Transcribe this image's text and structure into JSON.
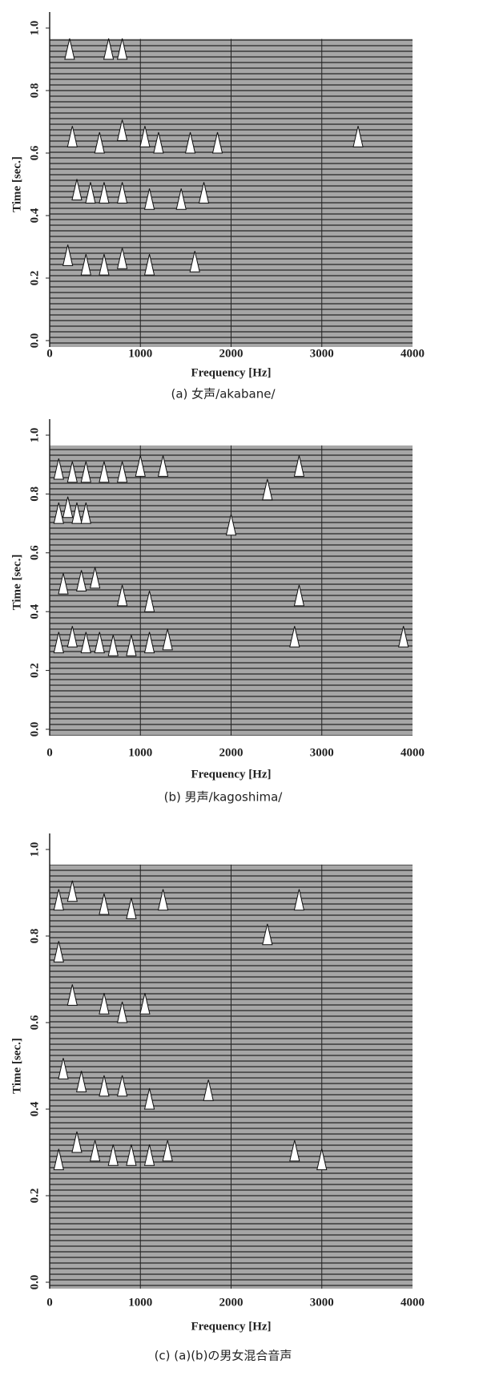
{
  "chart_data": [
    {
      "type": "waterfall",
      "x_label": "Frequency [Hz]",
      "y_label": "Time [sec.]",
      "caption": "(a) 女声/akabane/",
      "xlim": [
        0,
        4000
      ],
      "xticks": [
        0,
        1000,
        2000,
        3000,
        4000
      ],
      "ylim": [
        0,
        1
      ],
      "yticks": [
        {
          "value": 0,
          "label": "0.0"
        },
        0.2,
        0.4,
        0.6,
        0.8,
        {
          "value": 1,
          "label": "1.0"
        }
      ],
      "peaks": {
        "x": [
          220,
          650,
          800,
          250,
          550,
          800,
          1050,
          1200,
          1550,
          1850,
          300,
          450,
          600,
          800,
          1100,
          1450,
          1700,
          200,
          400,
          600,
          800,
          1100,
          1600,
          3400
        ],
        "y": [
          0.9,
          0.9,
          0.9,
          0.62,
          0.6,
          0.64,
          0.62,
          0.6,
          0.6,
          0.6,
          0.45,
          0.44,
          0.44,
          0.44,
          0.42,
          0.42,
          0.44,
          0.24,
          0.21,
          0.21,
          0.23,
          0.21,
          0.22,
          0.62
        ]
      }
    },
    {
      "type": "waterfall",
      "x_label": "Frequency [Hz]",
      "y_label": "Time [sec.]",
      "caption": "(b) 男声/kagoshima/",
      "xlim": [
        0,
        4000
      ],
      "xticks": [
        0,
        1000,
        2000,
        3000,
        4000
      ],
      "ylim": [
        0,
        1
      ],
      "yticks": [
        {
          "value": 0,
          "label": "0.0"
        },
        0.2,
        0.4,
        0.6,
        0.8,
        {
          "value": 1,
          "label": "1.0"
        }
      ],
      "peaks": {
        "x": [
          100,
          250,
          400,
          600,
          800,
          1000,
          1250,
          2750,
          2400,
          100,
          200,
          300,
          400,
          2000,
          150,
          350,
          500,
          800,
          1100,
          100,
          250,
          400,
          550,
          700,
          900,
          1100,
          1300,
          2700,
          2750,
          3900
        ],
        "y": [
          0.85,
          0.84,
          0.84,
          0.84,
          0.84,
          0.86,
          0.86,
          0.86,
          0.78,
          0.7,
          0.72,
          0.7,
          0.7,
          0.66,
          0.46,
          0.47,
          0.48,
          0.42,
          0.4,
          0.26,
          0.28,
          0.26,
          0.26,
          0.25,
          0.25,
          0.26,
          0.27,
          0.28,
          0.42,
          0.28
        ]
      }
    },
    {
      "type": "waterfall",
      "x_label": "Frequency [Hz]",
      "y_label": "Time [sec.]",
      "caption": "(c) (a)(b)の男女混合音声",
      "xlim": [
        0,
        4000
      ],
      "xticks": [
        0,
        1000,
        2000,
        3000,
        4000
      ],
      "ylim": [
        0,
        1
      ],
      "yticks": [
        {
          "value": 0,
          "label": "0.0"
        },
        0.2,
        0.4,
        0.6,
        0.8,
        {
          "value": 1,
          "label": "1.0"
        }
      ],
      "peaks": {
        "x": [
          100,
          250,
          600,
          900,
          1250,
          2750,
          2400,
          100,
          250,
          600,
          800,
          1050,
          150,
          350,
          600,
          800,
          1100,
          1750,
          100,
          300,
          500,
          700,
          900,
          1100,
          1300,
          2700,
          3000
        ],
        "y": [
          0.86,
          0.88,
          0.85,
          0.84,
          0.86,
          0.86,
          0.78,
          0.74,
          0.64,
          0.62,
          0.6,
          0.62,
          0.47,
          0.44,
          0.43,
          0.43,
          0.4,
          0.42,
          0.26,
          0.3,
          0.28,
          0.27,
          0.27,
          0.27,
          0.28,
          0.28,
          0.26
        ]
      }
    }
  ]
}
